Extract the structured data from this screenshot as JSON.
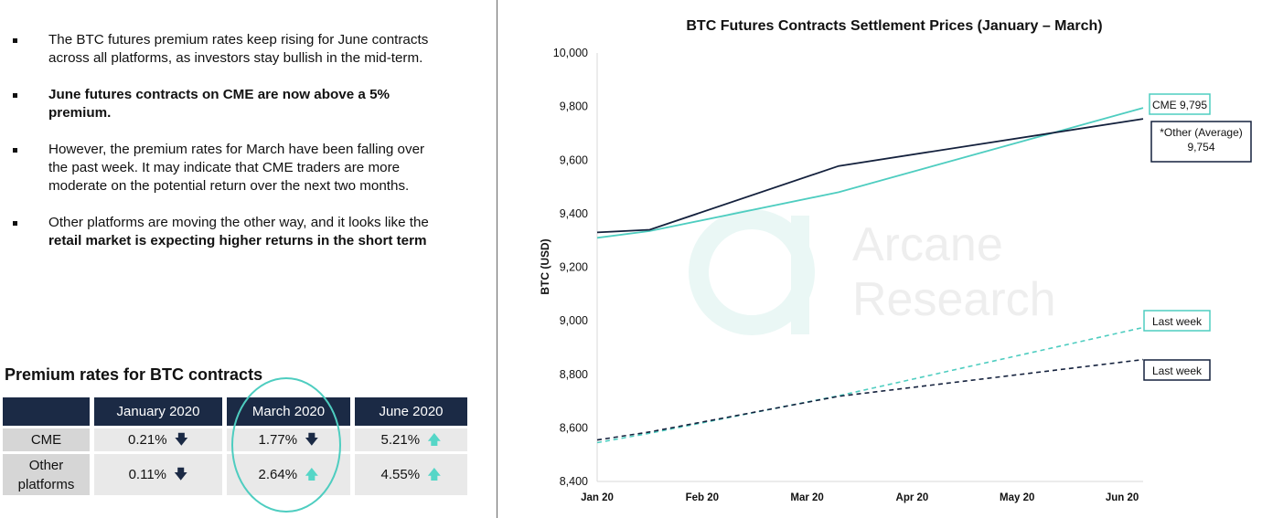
{
  "bullets": [
    {
      "pre": "The BTC futures premium rates keep rising for June contracts across all platforms, as investors stay bullish in the mid-term.",
      "bold": "",
      "post": ""
    },
    {
      "pre": "",
      "bold": "June futures contracts on CME are now above a 5% premium.",
      "post": ""
    },
    {
      "pre": "However, the premium rates for March have been falling over the past week. It may indicate that CME traders are more moderate on the potential return over the next two months.",
      "bold": "",
      "post": ""
    },
    {
      "pre": "Other platforms are moving the other way, and it looks like the ",
      "bold": "retail market is expecting higher returns in the short term",
      "post": ""
    }
  ],
  "table": {
    "title": "Premium rates for BTC contracts",
    "headers": [
      "January 2020",
      "March 2020",
      "June 2020"
    ],
    "rows": [
      {
        "label": "CME",
        "cells": [
          {
            "value": "0.21%",
            "dir": "down"
          },
          {
            "value": "1.77%",
            "dir": "down"
          },
          {
            "value": "5.21%",
            "dir": "up"
          }
        ]
      },
      {
        "label_l1": "Other",
        "label_l2": "platforms",
        "cells": [
          {
            "value": "0.11%",
            "dir": "down"
          },
          {
            "value": "2.64%",
            "dir": "up"
          },
          {
            "value": "4.55%",
            "dir": "up"
          }
        ]
      }
    ],
    "arrow_down": "🡇",
    "arrow_up": "🡅"
  },
  "watermark": {
    "line1": "Arcane",
    "line2": "Research"
  },
  "chart_data": {
    "type": "line",
    "title": "BTC Futures Contracts Settlement Prices (January – March)",
    "ylabel": "BTC (USD)",
    "xlabel": "",
    "ylim": [
      8400,
      10000
    ],
    "yticks": [
      8400,
      8600,
      8800,
      9000,
      9200,
      9400,
      9600,
      9800,
      10000
    ],
    "ytick_labels": [
      "8,400",
      "8,600",
      "8,800",
      "9,000",
      "9,200",
      "9,400",
      "9,600",
      "9,800",
      "10,000"
    ],
    "x_months": [
      "Jan 20",
      "Feb 20",
      "Mar 20",
      "Apr 20",
      "May 20",
      "Jun 20"
    ],
    "xlim_months": [
      0,
      5.2
    ],
    "series": [
      {
        "name": "CME",
        "style": "solid",
        "color": "#4ecdc0",
        "x": [
          0,
          0.5,
          2.3,
          5.2
        ],
        "y": [
          9310,
          9335,
          9480,
          9795
        ],
        "label": "CME 9,795"
      },
      {
        "name": "Other (Average)",
        "style": "solid",
        "color": "#14213d",
        "x": [
          0,
          0.5,
          2.3,
          5.2
        ],
        "y": [
          9330,
          9340,
          9578,
          9754
        ],
        "label_l1": "*Other (Average)",
        "label_l2": "9,754"
      },
      {
        "name": "CME last week",
        "style": "dashed",
        "color": "#4ecdc0",
        "x": [
          0,
          0.5,
          2.3,
          5.2
        ],
        "y": [
          8545,
          8580,
          8720,
          8975
        ],
        "label": "Last week"
      },
      {
        "name": "Other last week",
        "style": "dashed",
        "color": "#14213d",
        "x": [
          0,
          0.5,
          2.3,
          5.2
        ],
        "y": [
          8555,
          8585,
          8718,
          8855
        ],
        "label": "Last week"
      }
    ],
    "colors": {
      "cme": "#4ecdc0",
      "other": "#14213d"
    }
  }
}
